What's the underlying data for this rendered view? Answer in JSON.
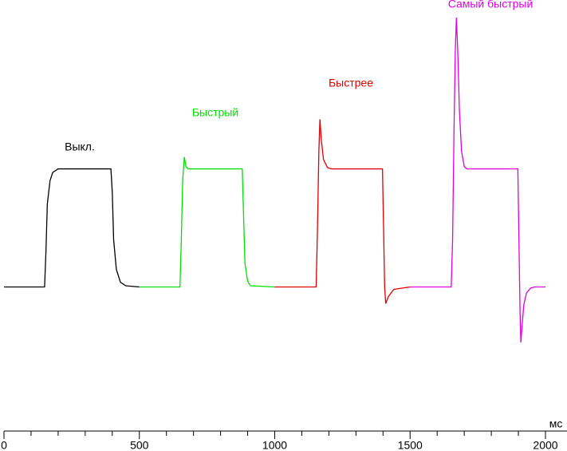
{
  "chart_data": {
    "type": "line",
    "x_unit": "мс",
    "xlim": [
      0,
      2000
    ],
    "xticks": [
      0,
      500,
      1000,
      1500,
      2000
    ],
    "xminorticks": [
      100,
      200,
      300,
      400,
      600,
      700,
      800,
      900,
      1100,
      1200,
      1300,
      1400,
      1600,
      1700,
      1800,
      1900
    ],
    "ylim": [
      -122,
      243
    ],
    "grid": false,
    "series": [
      {
        "name": "Выкл.",
        "color": "#000000",
        "x": [
          0,
          150,
          155,
          160,
          170,
          180,
          200,
          395,
          400,
          405,
          415,
          430,
          450,
          500
        ],
        "values": [
          0,
          0,
          30,
          70,
          90,
          97,
          100,
          100,
          80,
          40,
          15,
          4,
          1,
          0
        ]
      },
      {
        "name": "Быстрый",
        "color": "#00e000",
        "x": [
          500,
          650,
          655,
          660,
          666,
          672,
          680,
          700,
          880,
          885,
          890,
          900,
          910,
          1000
        ],
        "values": [
          0,
          0,
          40,
          90,
          110,
          102,
          100,
          100,
          100,
          60,
          20,
          5,
          1,
          0
        ]
      },
      {
        "name": "Быстрее",
        "color": "#e00000",
        "x": [
          1000,
          1153,
          1158,
          1163,
          1167,
          1172,
          1180,
          1195,
          1210,
          1398,
          1402,
          1406,
          1410,
          1420,
          1440,
          1500
        ],
        "values": [
          0,
          0,
          50,
          115,
          142,
          125,
          108,
          101,
          100,
          100,
          50,
          0,
          -14,
          -8,
          -2,
          0
        ]
      },
      {
        "name": "Самый быстрый",
        "color": "#e000e0",
        "x": [
          1500,
          1652,
          1657,
          1662,
          1667,
          1671,
          1676,
          1682,
          1690,
          1700,
          1710,
          1898,
          1902,
          1906,
          1909,
          1913,
          1920,
          1930,
          1945,
          1960,
          2000
        ],
        "values": [
          0,
          0,
          40,
          130,
          200,
          228,
          200,
          150,
          115,
          102,
          100,
          100,
          40,
          -20,
          -47,
          -35,
          -15,
          -5,
          -1,
          0,
          0
        ]
      }
    ]
  }
}
